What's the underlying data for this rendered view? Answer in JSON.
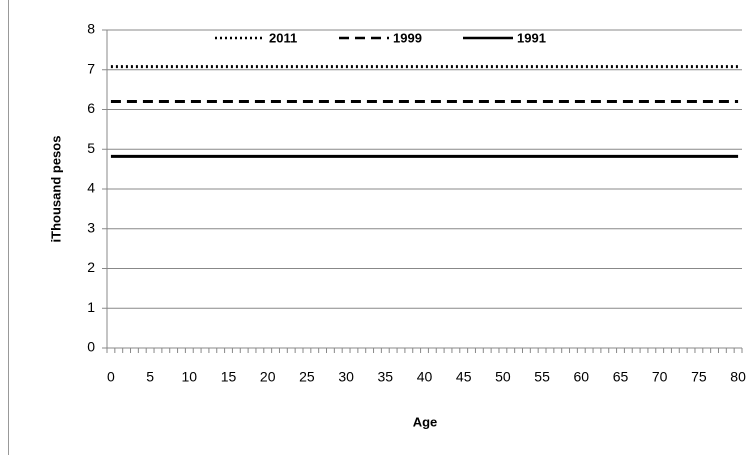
{
  "chart_data": {
    "type": "line",
    "x_label": "Age",
    "y_label": "iThousand pesos",
    "x": [
      0,
      1,
      2,
      3,
      4,
      5,
      6,
      7,
      8,
      9,
      10,
      11,
      12,
      13,
      14,
      15,
      16,
      17,
      18,
      19,
      20,
      21,
      22,
      23,
      24,
      25,
      26,
      27,
      28,
      29,
      30,
      31,
      32,
      33,
      34,
      35,
      36,
      37,
      38,
      39,
      40,
      41,
      42,
      43,
      44,
      45,
      46,
      47,
      48,
      49,
      50,
      51,
      52,
      53,
      54,
      55,
      56,
      57,
      58,
      59,
      60,
      61,
      62,
      63,
      64,
      65,
      66,
      67,
      68,
      69,
      70,
      71,
      72,
      73,
      74,
      75,
      76,
      77,
      78,
      79,
      80
    ],
    "series": [
      {
        "name": "2011",
        "color": "#000000",
        "dash": "dotted",
        "values": [
          7.08,
          7.08,
          7.08,
          7.08,
          7.08,
          7.08,
          7.08,
          7.08,
          7.08,
          7.08,
          7.08,
          7.08,
          7.08,
          7.08,
          7.08,
          7.08,
          7.08,
          7.08,
          7.08,
          7.08,
          7.08,
          7.08,
          7.08,
          7.08,
          7.08,
          7.08,
          7.08,
          7.08,
          7.08,
          7.08,
          7.08,
          7.08,
          7.08,
          7.08,
          7.08,
          7.08,
          7.08,
          7.08,
          7.08,
          7.08,
          7.08,
          7.08,
          7.08,
          7.08,
          7.08,
          7.08,
          7.08,
          7.08,
          7.08,
          7.08,
          7.08,
          7.08,
          7.08,
          7.08,
          7.08,
          7.08,
          7.08,
          7.08,
          7.08,
          7.08,
          7.08,
          7.08,
          7.08,
          7.08,
          7.08,
          7.08,
          7.08,
          7.08,
          7.08,
          7.08,
          7.08,
          7.08,
          7.08,
          7.08,
          7.08,
          7.08,
          7.08,
          7.08,
          7.08,
          7.08,
          7.08
        ]
      },
      {
        "name": "1999",
        "color": "#000000",
        "dash": "dashed",
        "values": [
          6.2,
          6.2,
          6.2,
          6.2,
          6.2,
          6.2,
          6.2,
          6.2,
          6.2,
          6.2,
          6.2,
          6.2,
          6.2,
          6.2,
          6.2,
          6.2,
          6.2,
          6.2,
          6.2,
          6.2,
          6.2,
          6.2,
          6.2,
          6.2,
          6.2,
          6.2,
          6.2,
          6.2,
          6.2,
          6.2,
          6.2,
          6.2,
          6.2,
          6.2,
          6.2,
          6.2,
          6.2,
          6.2,
          6.2,
          6.2,
          6.2,
          6.2,
          6.2,
          6.2,
          6.2,
          6.2,
          6.2,
          6.2,
          6.2,
          6.2,
          6.2,
          6.2,
          6.2,
          6.2,
          6.2,
          6.2,
          6.2,
          6.2,
          6.2,
          6.2,
          6.2,
          6.2,
          6.2,
          6.2,
          6.2,
          6.2,
          6.2,
          6.2,
          6.2,
          6.2,
          6.2,
          6.2,
          6.2,
          6.2,
          6.2,
          6.2,
          6.2,
          6.2,
          6.2,
          6.2,
          6.2
        ]
      },
      {
        "name": "1991",
        "color": "#000000",
        "dash": "solid",
        "values": [
          4.82,
          4.82,
          4.82,
          4.82,
          4.82,
          4.82,
          4.82,
          4.82,
          4.82,
          4.82,
          4.82,
          4.82,
          4.82,
          4.82,
          4.82,
          4.82,
          4.82,
          4.82,
          4.82,
          4.82,
          4.82,
          4.82,
          4.82,
          4.82,
          4.82,
          4.82,
          4.82,
          4.82,
          4.82,
          4.82,
          4.82,
          4.82,
          4.82,
          4.82,
          4.82,
          4.82,
          4.82,
          4.82,
          4.82,
          4.82,
          4.82,
          4.82,
          4.82,
          4.82,
          4.82,
          4.82,
          4.82,
          4.82,
          4.82,
          4.82,
          4.82,
          4.82,
          4.82,
          4.82,
          4.82,
          4.82,
          4.82,
          4.82,
          4.82,
          4.82,
          4.82,
          4.82,
          4.82,
          4.82,
          4.82,
          4.82,
          4.82,
          4.82,
          4.82,
          4.82,
          4.82,
          4.82,
          4.82,
          4.82,
          4.82,
          4.82,
          4.82,
          4.82,
          4.82,
          4.82,
          4.82
        ]
      }
    ],
    "xlim": [
      -0.5,
      80.5
    ],
    "xticks": [
      0,
      5,
      10,
      15,
      20,
      25,
      30,
      35,
      40,
      45,
      50,
      55,
      60,
      65,
      70,
      75,
      80
    ],
    "ylim": [
      0,
      8
    ],
    "yticks": [
      0,
      1,
      2,
      3,
      4,
      5,
      6,
      7,
      8
    ],
    "grid": true,
    "legend": "top"
  }
}
